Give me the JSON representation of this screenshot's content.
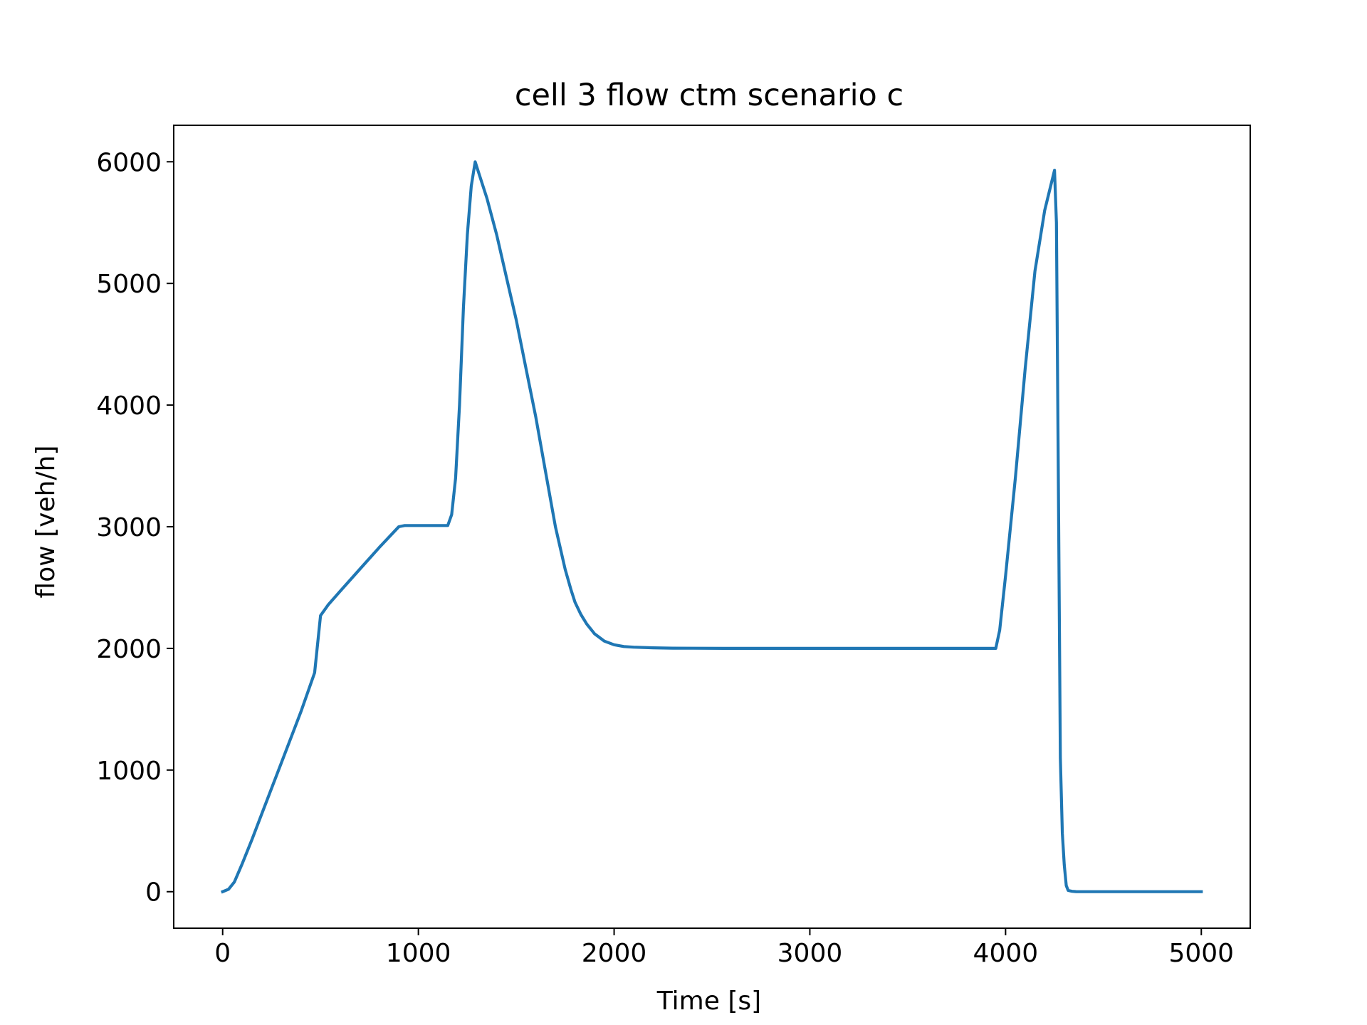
{
  "chart_data": {
    "type": "line",
    "title": "cell 3 flow ctm scenario c",
    "xlabel": "Time [s]",
    "ylabel": "flow [veh/h]",
    "xlim": [
      -250,
      5250
    ],
    "ylim": [
      -300,
      6300
    ],
    "xticks": [
      0,
      1000,
      2000,
      3000,
      4000,
      5000
    ],
    "yticks": [
      0,
      1000,
      2000,
      3000,
      4000,
      5000,
      6000
    ],
    "xtick_labels": [
      "0",
      "1000",
      "2000",
      "3000",
      "4000",
      "5000"
    ],
    "ytick_labels": [
      "0",
      "1000",
      "2000",
      "3000",
      "4000",
      "5000",
      "6000"
    ],
    "grid": false,
    "legend": "none",
    "series": [
      {
        "color": "#1f77b4",
        "x": [
          0,
          30,
          60,
          100,
          150,
          200,
          300,
          400,
          470,
          500,
          540,
          600,
          700,
          800,
          900,
          930,
          1000,
          1100,
          1150,
          1170,
          1190,
          1210,
          1230,
          1250,
          1270,
          1290,
          1300,
          1350,
          1400,
          1450,
          1500,
          1550,
          1600,
          1650,
          1700,
          1750,
          1780,
          1800,
          1830,
          1860,
          1900,
          1950,
          2000,
          2050,
          2100,
          2200,
          2300,
          2400,
          2600,
          2800,
          3000,
          3500,
          3900,
          3950,
          3970,
          4000,
          4050,
          4100,
          4150,
          4200,
          4250,
          4260,
          4270,
          4280,
          4290,
          4300,
          4310,
          4320,
          4340,
          4360,
          4400,
          4500,
          5000
        ],
        "y": [
          0,
          20,
          80,
          230,
          430,
          640,
          1060,
          1480,
          1800,
          2270,
          2360,
          2470,
          2650,
          2830,
          3000,
          3010,
          3010,
          3010,
          3010,
          3100,
          3400,
          4000,
          4800,
          5400,
          5800,
          6000,
          5950,
          5700,
          5400,
          5050,
          4700,
          4300,
          3900,
          3450,
          3000,
          2650,
          2480,
          2380,
          2280,
          2200,
          2120,
          2060,
          2030,
          2015,
          2010,
          2005,
          2002,
          2001,
          2000,
          2000,
          2000,
          2000,
          2000,
          2000,
          2150,
          2600,
          3400,
          4300,
          5100,
          5600,
          5930,
          5500,
          3300,
          1100,
          480,
          220,
          50,
          10,
          3,
          1,
          0,
          0,
          0
        ]
      }
    ]
  }
}
